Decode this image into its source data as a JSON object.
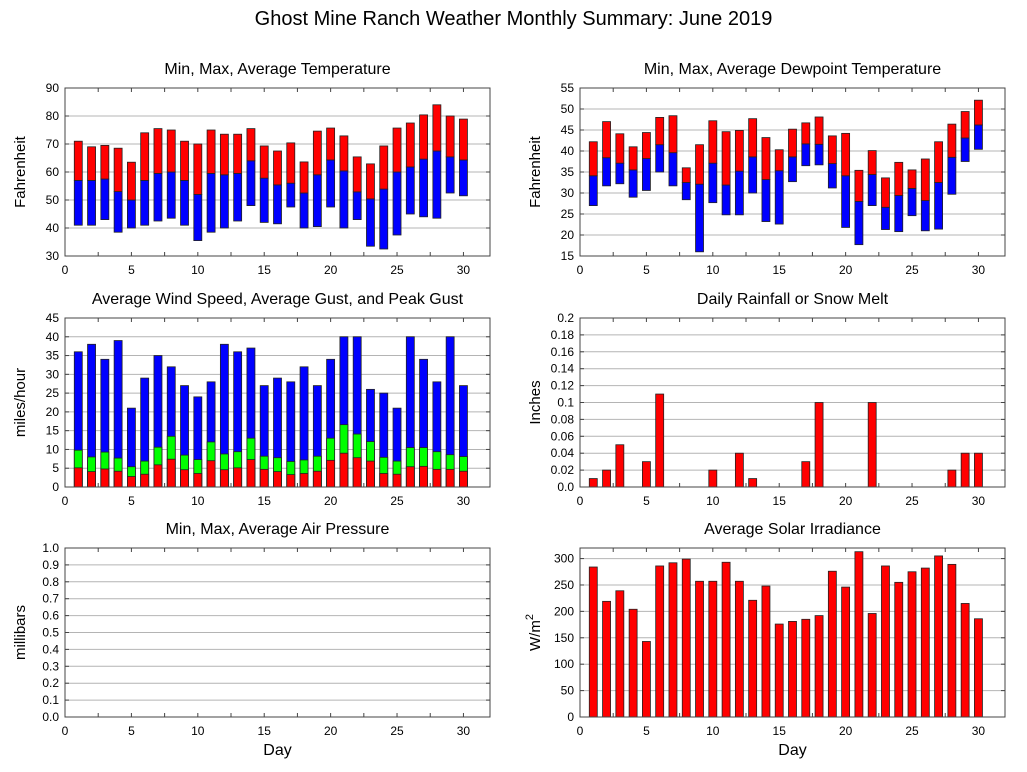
{
  "title": "Ghost Mine Ranch Weather Monthly Summary: June 2019",
  "colors": {
    "red": "#ff0000",
    "blue": "#0000ff",
    "green": "#00ff00",
    "grid": "#b4b4b4",
    "axis": "#444444"
  },
  "chart_data": [
    {
      "id": "temperature",
      "type": "bar",
      "subtype": "floating-range",
      "title": "Min, Max, Average Temperature",
      "xlabel": "",
      "ylabel": "Fahrenheit",
      "xlim": [
        0,
        32
      ],
      "ylim": [
        30,
        90
      ],
      "xticks": [
        0,
        5,
        10,
        15,
        20,
        25,
        30
      ],
      "yticks": [
        30,
        40,
        50,
        60,
        70,
        80,
        90
      ],
      "grid": true,
      "x": [
        1,
        2,
        3,
        4,
        5,
        6,
        7,
        8,
        9,
        10,
        11,
        12,
        13,
        14,
        15,
        16,
        17,
        18,
        19,
        20,
        21,
        22,
        23,
        24,
        25,
        26,
        27,
        28,
        29,
        30
      ],
      "series": [
        {
          "name": "Min",
          "values": [
            41,
            41,
            43,
            38.5,
            40,
            41,
            42.5,
            43.5,
            41,
            35.5,
            38.5,
            40,
            42.5,
            48,
            42,
            41.5,
            47.5,
            40,
            40.5,
            47.5,
            40,
            43,
            33.5,
            32.5,
            37.5,
            45,
            44,
            43.5,
            52.5,
            51.5
          ]
        },
        {
          "name": "Average",
          "values": [
            57,
            57,
            57.5,
            53,
            50,
            57,
            59.5,
            60,
            57,
            52,
            59.5,
            59,
            59.5,
            64,
            57.8,
            55.4,
            56,
            52.5,
            59,
            64.3,
            60.4,
            52.9,
            50.4,
            53.9,
            60,
            61.8,
            64.6,
            67.5,
            65.4,
            64.3
          ]
        },
        {
          "name": "Max",
          "values": [
            71,
            69,
            69.5,
            68.5,
            63.5,
            74,
            75.5,
            75,
            71,
            70,
            75,
            73.5,
            73.5,
            75.5,
            69.3,
            67.5,
            70.4,
            63.6,
            74.6,
            75.7,
            72.9,
            65.4,
            62.9,
            69.3,
            75.7,
            77.5,
            80.4,
            84,
            80,
            78.9
          ]
        }
      ]
    },
    {
      "id": "dewpoint",
      "type": "bar",
      "subtype": "floating-range",
      "title": "Min, Max, Average Dewpoint Temperature",
      "xlabel": "",
      "ylabel": "Fahrenheit",
      "xlim": [
        0,
        32
      ],
      "ylim": [
        15,
        55
      ],
      "xticks": [
        0,
        5,
        10,
        15,
        20,
        25,
        30
      ],
      "yticks": [
        15,
        20,
        25,
        30,
        35,
        40,
        45,
        50,
        55
      ],
      "grid": true,
      "x": [
        1,
        2,
        3,
        4,
        5,
        6,
        7,
        8,
        9,
        10,
        11,
        12,
        13,
        14,
        15,
        16,
        17,
        18,
        19,
        20,
        21,
        22,
        23,
        24,
        25,
        26,
        27,
        28,
        29,
        30
      ],
      "series": [
        {
          "name": "Min",
          "values": [
            27,
            31.7,
            32.2,
            29,
            30.6,
            35,
            31.7,
            28.4,
            16,
            27.7,
            24.8,
            24.8,
            30,
            23.2,
            22.6,
            32.7,
            36.5,
            36.7,
            31.2,
            21.8,
            17.7,
            27,
            21.3,
            20.8,
            24.6,
            21,
            21.4,
            29.7,
            37.5,
            40.4
          ]
        },
        {
          "name": "Average",
          "values": [
            34.1,
            38.4,
            37.1,
            35.5,
            38.2,
            41.5,
            39.6,
            32.5,
            32.1,
            37.1,
            31.9,
            35.2,
            38.6,
            33.2,
            35.3,
            38.6,
            41.7,
            41.6,
            37,
            34.1,
            28,
            34.4,
            26.6,
            29.4,
            31.1,
            28.2,
            32.5,
            38.5,
            43.1,
            46.2
          ]
        },
        {
          "name": "Max",
          "values": [
            42.2,
            47,
            44.1,
            41,
            44.4,
            48,
            48.4,
            36,
            41.5,
            47.2,
            44.6,
            44.9,
            47.7,
            43.2,
            40.3,
            45.2,
            46.7,
            48.1,
            43.6,
            44.2,
            35.4,
            40.1,
            33.6,
            37.3,
            35.5,
            38.1,
            42.2,
            46.4,
            49.4,
            52.1
          ]
        }
      ]
    },
    {
      "id": "wind",
      "type": "bar",
      "subtype": "overlaid",
      "title": "Average Wind Speed, Average Gust, and Peak Gust",
      "xlabel": "",
      "ylabel": "miles/hour",
      "xlim": [
        0,
        32
      ],
      "ylim": [
        0,
        45
      ],
      "xticks": [
        0,
        5,
        10,
        15,
        20,
        25,
        30
      ],
      "yticks": [
        0,
        5,
        10,
        15,
        20,
        25,
        30,
        35,
        40,
        45
      ],
      "grid": true,
      "x": [
        1,
        2,
        3,
        4,
        5,
        6,
        7,
        8,
        9,
        10,
        11,
        12,
        13,
        14,
        15,
        16,
        17,
        18,
        19,
        20,
        21,
        22,
        23,
        24,
        25,
        26,
        27,
        28,
        29,
        30
      ],
      "series": [
        {
          "name": "Peak Gust",
          "values": [
            36,
            38,
            34,
            39,
            21,
            29,
            35,
            32,
            27,
            24,
            28,
            38,
            36,
            37,
            27,
            29,
            28,
            32,
            27,
            34,
            40,
            40,
            26,
            25,
            21,
            40,
            34,
            28,
            40,
            27
          ]
        },
        {
          "name": "Average Gust",
          "values": [
            9.8,
            8,
            9.3,
            7.7,
            5.4,
            6.9,
            10.6,
            13.5,
            8.5,
            7.3,
            12,
            8.8,
            9.4,
            13,
            8.2,
            7.8,
            6.8,
            7.2,
            8.2,
            13,
            16.6,
            14.1,
            12.1,
            7.9,
            6.9,
            10.5,
            10.5,
            9.4,
            8.6,
            8.1
          ]
        },
        {
          "name": "Average Wind Speed",
          "values": [
            5.1,
            4.1,
            4.8,
            4.2,
            2.8,
            3.4,
            5.9,
            7.4,
            4.6,
            3.6,
            7,
            4.6,
            5.1,
            7.3,
            4.7,
            4.1,
            3.3,
            3.6,
            4.2,
            7.1,
            9,
            7.8,
            6.9,
            3.6,
            3.4,
            5.4,
            5.5,
            4.7,
            4.7,
            4.2
          ]
        }
      ]
    },
    {
      "id": "rainfall",
      "type": "bar",
      "title": "Daily Rainfall or Snow Melt",
      "xlabel": "",
      "ylabel": "Inches",
      "xlim": [
        0,
        32
      ],
      "ylim": [
        0,
        0.2
      ],
      "xticks": [
        0,
        5,
        10,
        15,
        20,
        25,
        30
      ],
      "yticks": [
        "0.0",
        "0.02",
        "0.04",
        "0.06",
        "0.08",
        "0.1",
        "0.12",
        "0.14",
        "0.16",
        "0.18",
        "0.2"
      ],
      "grid": true,
      "x": [
        1,
        2,
        3,
        5,
        6,
        10,
        12,
        13,
        17,
        18,
        22,
        28,
        29,
        30
      ],
      "values": [
        0.01,
        0.02,
        0.05,
        0.03,
        0.11,
        0.02,
        0.04,
        0.01,
        0.03,
        0.1,
        0.1,
        0.02,
        0.04,
        0.04
      ]
    },
    {
      "id": "pressure",
      "type": "bar",
      "subtype": "floating-range",
      "title": "Min, Max, Average Air Pressure",
      "xlabel": "Day",
      "ylabel": "millibars",
      "xlim": [
        0,
        32
      ],
      "ylim": [
        0,
        1
      ],
      "xticks": [
        0,
        5,
        10,
        15,
        20,
        25,
        30
      ],
      "yticks": [
        "0.0",
        "0.1",
        "0.2",
        "0.3",
        "0.4",
        "0.5",
        "0.6",
        "0.7",
        "0.8",
        "0.9",
        "1.0"
      ],
      "grid": true,
      "x": [],
      "series": []
    },
    {
      "id": "solar",
      "type": "bar",
      "title": "Average Solar Irradiance",
      "xlabel": "Day",
      "ylabel": "W/m",
      "ylabel_sup": "2",
      "xlim": [
        0,
        32
      ],
      "ylim": [
        0,
        320
      ],
      "xticks": [
        0,
        5,
        10,
        15,
        20,
        25,
        30
      ],
      "yticks": [
        0,
        50,
        100,
        150,
        200,
        250,
        300
      ],
      "grid": true,
      "x": [
        1,
        2,
        3,
        4,
        5,
        6,
        7,
        8,
        9,
        10,
        11,
        12,
        13,
        14,
        15,
        16,
        17,
        18,
        19,
        20,
        21,
        22,
        23,
        24,
        25,
        26,
        27,
        28,
        29,
        30
      ],
      "values": [
        284,
        219,
        239,
        204,
        143,
        286,
        292,
        299,
        257,
        257,
        293,
        257,
        221,
        248,
        176,
        181,
        185,
        192,
        276,
        246,
        313,
        196,
        286,
        255,
        275,
        282,
        305,
        289,
        215,
        186
      ]
    }
  ]
}
